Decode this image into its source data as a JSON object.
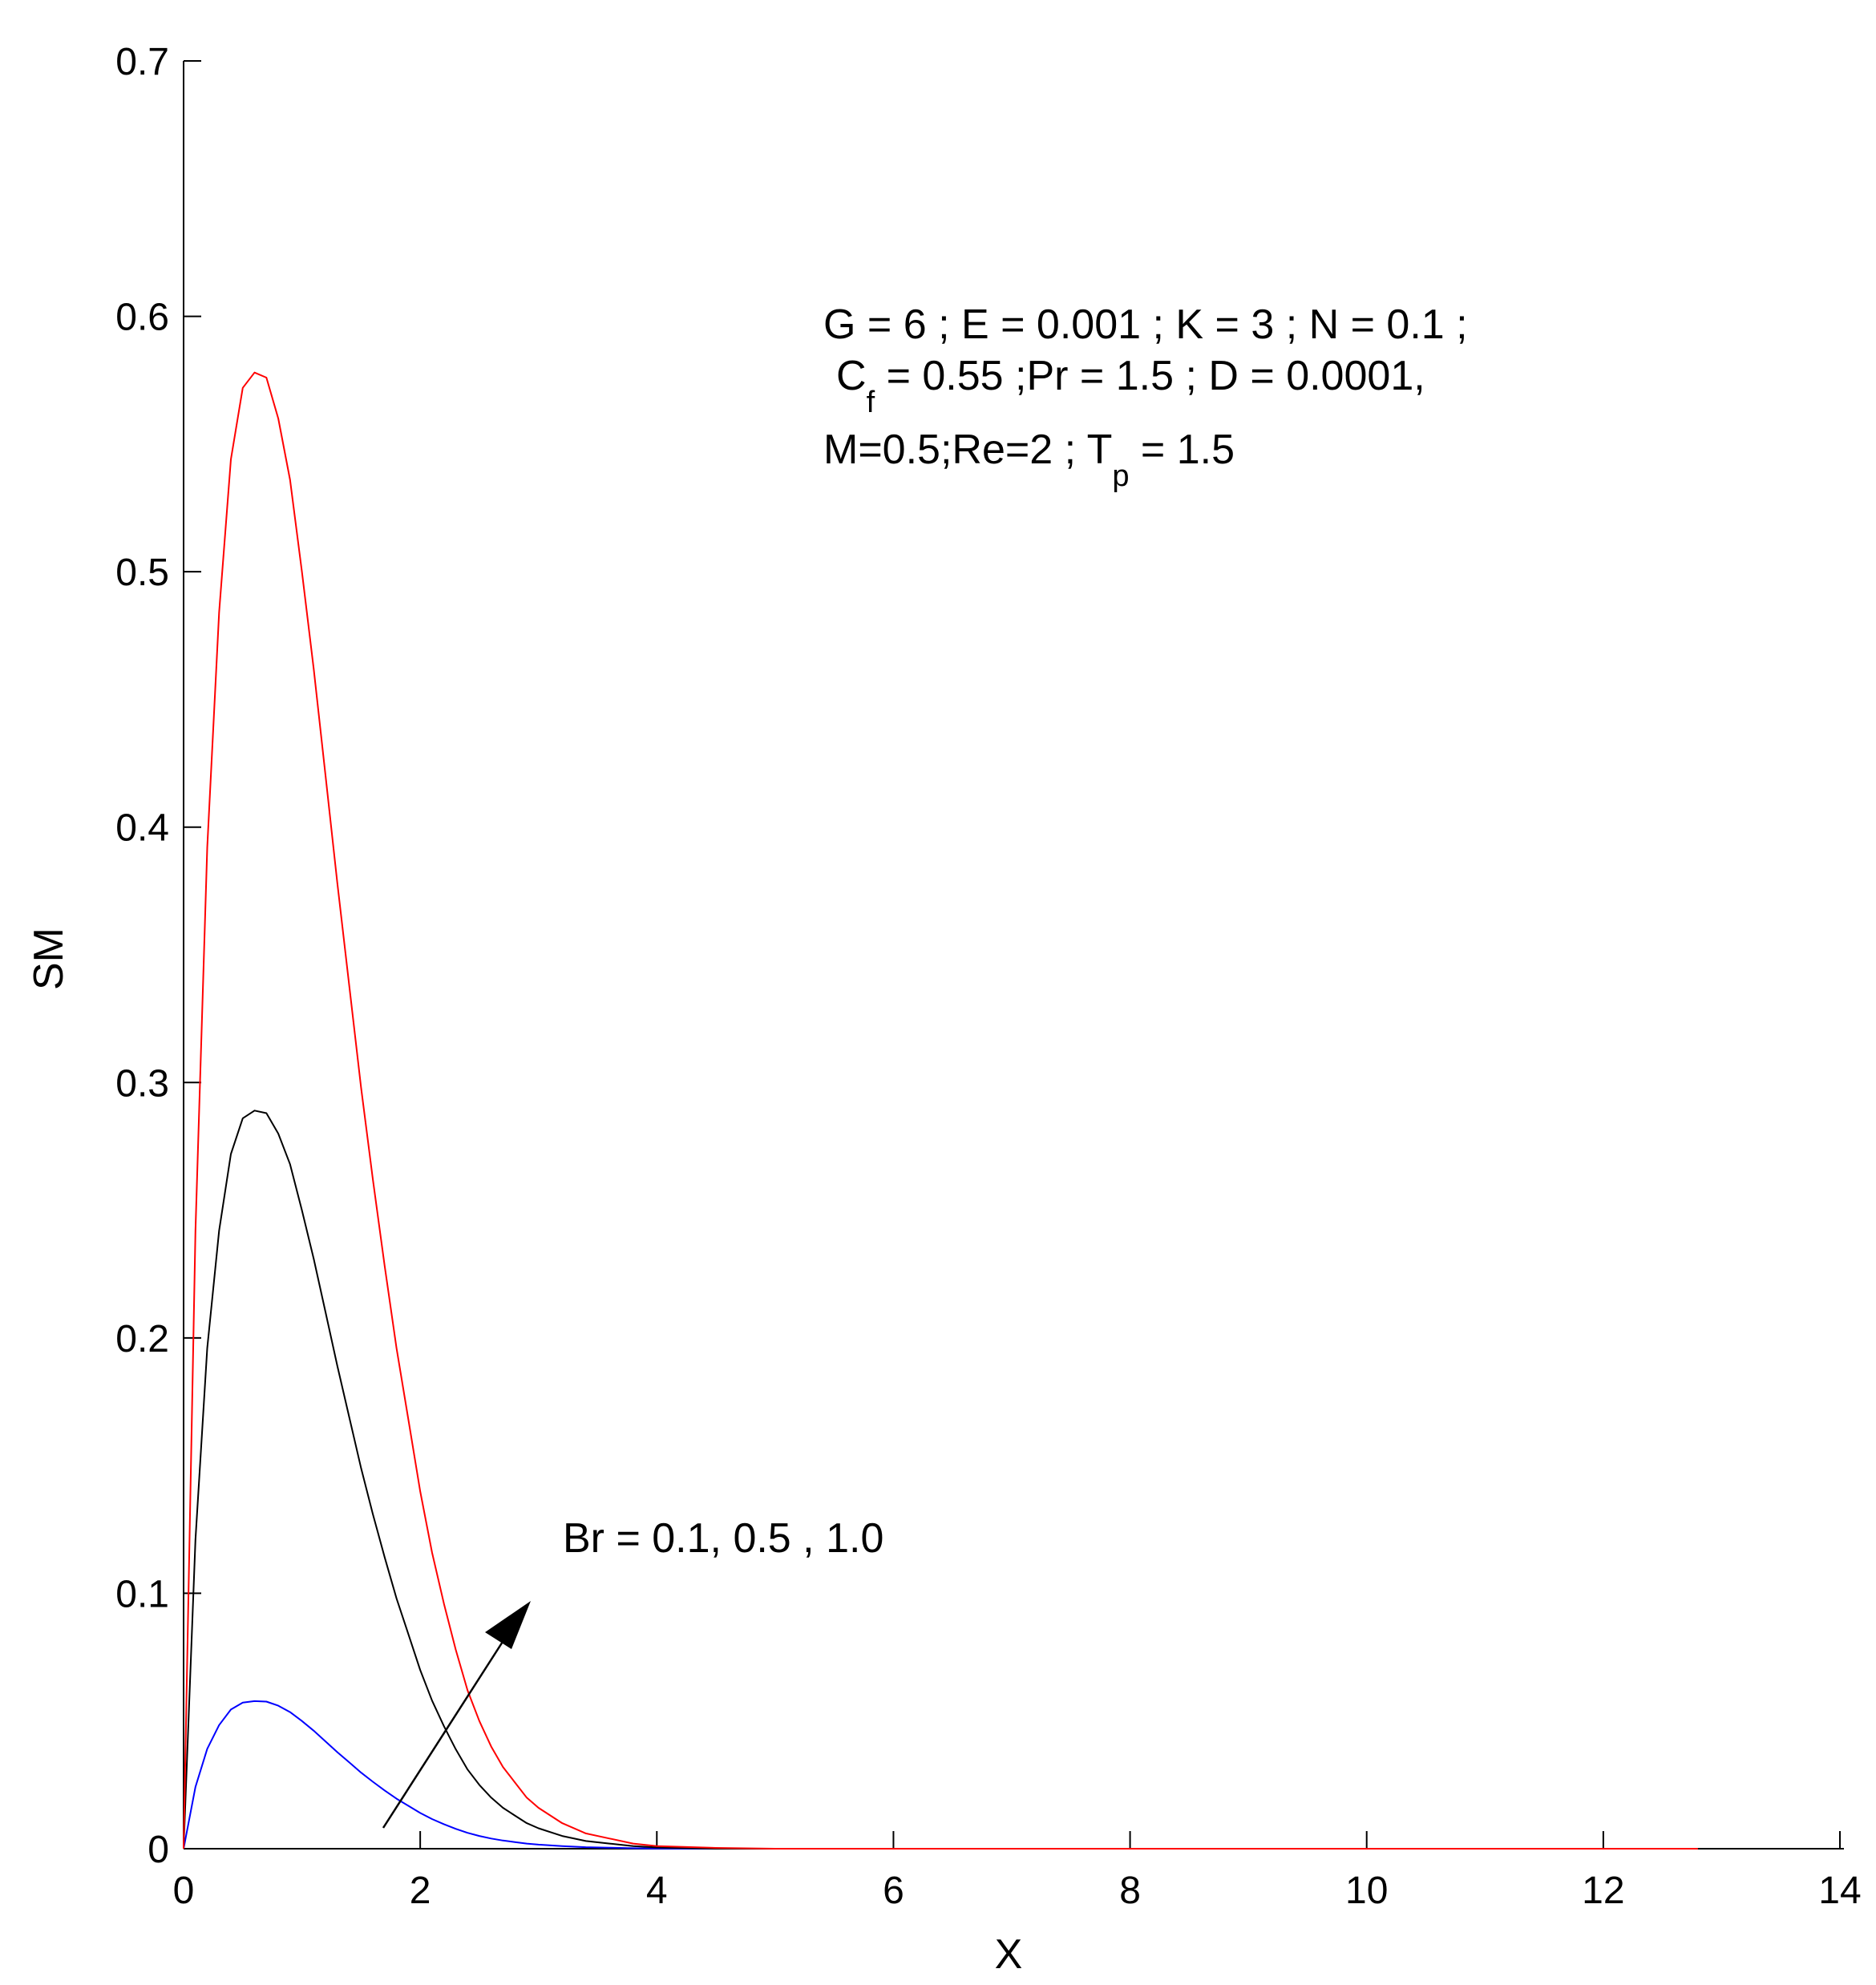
{
  "chart_data": {
    "type": "line",
    "title": "",
    "xlabel": "X",
    "ylabel": "SM",
    "xlim": [
      0,
      14
    ],
    "ylim": [
      0,
      0.7
    ],
    "x_ticks": [
      "0",
      "2",
      "4",
      "6",
      "8",
      "10",
      "12",
      "14"
    ],
    "y_ticks": [
      "0",
      "0.1",
      "0.2",
      "0.3",
      "0.4",
      "0.5",
      "0.6",
      "0.7"
    ],
    "grid": false,
    "legend": "none",
    "x": [
      0,
      0.1,
      0.2,
      0.3,
      0.4,
      0.5,
      0.6,
      0.7,
      0.8,
      0.9,
      1.0,
      1.1,
      1.2,
      1.3,
      1.4,
      1.5,
      1.6,
      1.7,
      1.8,
      1.9,
      2.0,
      2.1,
      2.2,
      2.3,
      2.4,
      2.5,
      2.6,
      2.7,
      2.8,
      2.9,
      3.0,
      3.2,
      3.4,
      3.6,
      3.8,
      4.0,
      4.5,
      5.0,
      6.0,
      8.0,
      10.0,
      12.0,
      12.8
    ],
    "series": [
      {
        "color": "#0000ff",
        "values": [
          0,
          0.0242,
          0.0391,
          0.0484,
          0.0545,
          0.0572,
          0.0578,
          0.0576,
          0.056,
          0.0535,
          0.05,
          0.0462,
          0.042,
          0.0378,
          0.0338,
          0.0298,
          0.0262,
          0.0228,
          0.0196,
          0.0168,
          0.014,
          0.0116,
          0.0096,
          0.0078,
          0.0062,
          0.005,
          0.004,
          0.0032,
          0.0026,
          0.002,
          0.0016,
          0.001,
          0.0006,
          0.0004,
          0.0002,
          0.0001,
          0,
          0,
          0,
          0,
          0,
          0,
          0
        ]
      },
      {
        "color": "#000000",
        "values": [
          0,
          0.121,
          0.196,
          0.242,
          0.272,
          0.286,
          0.289,
          0.288,
          0.28,
          0.268,
          0.25,
          0.231,
          0.21,
          0.189,
          0.169,
          0.149,
          0.131,
          0.114,
          0.098,
          0.084,
          0.07,
          0.058,
          0.048,
          0.039,
          0.031,
          0.025,
          0.02,
          0.016,
          0.013,
          0.01,
          0.008,
          0.005,
          0.003,
          0.002,
          0.001,
          0.0005,
          0,
          0,
          0,
          0,
          0,
          0,
          0
        ]
      },
      {
        "color": "#ff0000",
        "values": [
          0,
          0.242,
          0.392,
          0.484,
          0.544,
          0.572,
          0.578,
          0.576,
          0.56,
          0.536,
          0.5,
          0.462,
          0.42,
          0.378,
          0.338,
          0.298,
          0.262,
          0.228,
          0.196,
          0.168,
          0.14,
          0.116,
          0.096,
          0.078,
          0.062,
          0.05,
          0.04,
          0.032,
          0.026,
          0.02,
          0.016,
          0.01,
          0.006,
          0.004,
          0.002,
          0.001,
          0.0003,
          0,
          0,
          0,
          0,
          0,
          0
        ]
      }
    ],
    "annotations": {
      "params_line1": "G = 6 ;  E = 0.001 ; K = 3 ; N = 0.1 ;",
      "params_line2_prefix": "C",
      "params_line2_sub": "f",
      "params_line2_rest": " = 0.55 ;Pr = 1.5 ; D = 0.0001,",
      "params_line3_prefix": "M=0.5;Re=2 ; T",
      "params_line3_sub": "p",
      "params_line3_rest": " = 1.5",
      "arrow_label": "Br = 0.1, 0.5 , 1.0"
    }
  }
}
